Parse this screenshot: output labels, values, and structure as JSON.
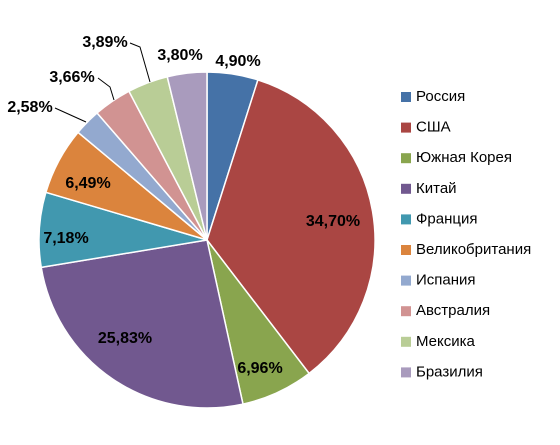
{
  "chart_data": {
    "type": "pie",
    "title": "",
    "legend_position": "right",
    "slices": [
      {
        "name": "Россия",
        "value": 4.9,
        "label": "4,90%",
        "color": "#4572a7"
      },
      {
        "name": "США",
        "value": 34.7,
        "label": "34,70%",
        "color": "#aa4643"
      },
      {
        "name": "Южная Корея",
        "value": 6.96,
        "label": "6,96%",
        "color": "#89a54e"
      },
      {
        "name": "Китай",
        "value": 25.83,
        "label": "25,83%",
        "color": "#71588f"
      },
      {
        "name": "Франция",
        "value": 7.18,
        "label": "7,18%",
        "color": "#4198af"
      },
      {
        "name": "Великобритания",
        "value": 6.49,
        "label": "6,49%",
        "color": "#db843d"
      },
      {
        "name": "Испания",
        "value": 2.58,
        "label": "2,58%",
        "color": "#93a9cf"
      },
      {
        "name": "Австралия",
        "value": 3.66,
        "label": "3,66%",
        "color": "#d19392"
      },
      {
        "name": "Мексика",
        "value": 3.89,
        "label": "3,89%",
        "color": "#b9cd96"
      },
      {
        "name": "Бразилия",
        "value": 3.8,
        "label": "3,80%",
        "color": "#a99bbd"
      }
    ]
  }
}
